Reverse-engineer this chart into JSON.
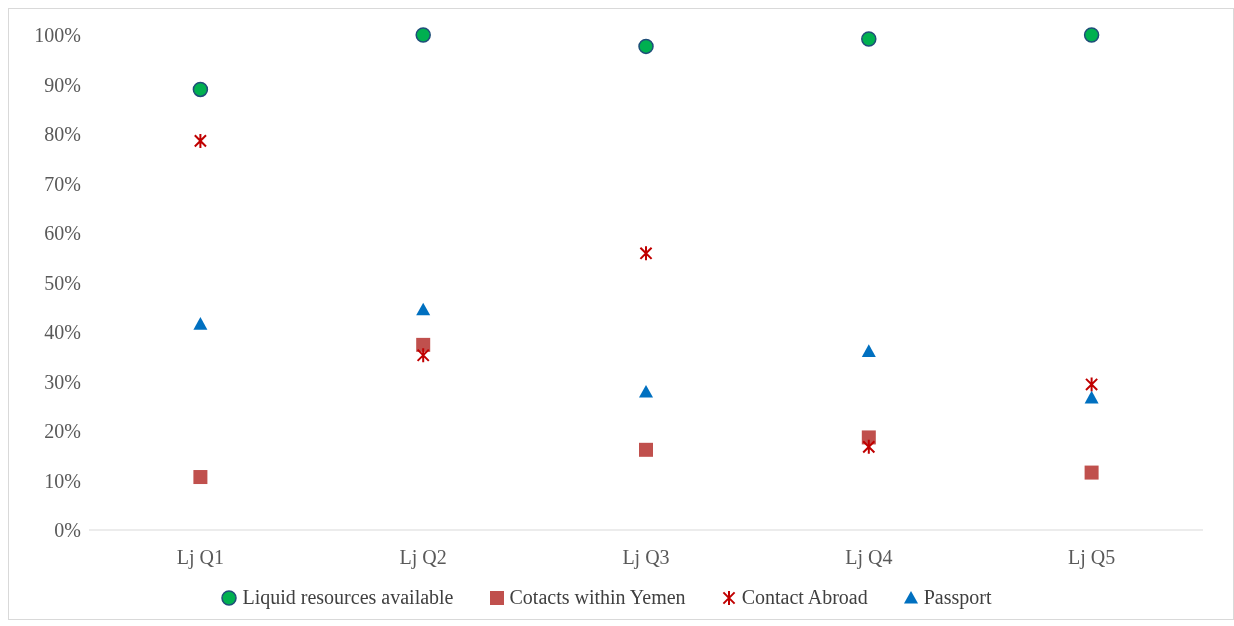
{
  "chart_data": {
    "type": "scatter",
    "categories": [
      "Lj Q1",
      "Lj Q2",
      "Lj Q3",
      "Lj Q4",
      "Lj Q5"
    ],
    "ylim": [
      0,
      100
    ],
    "yticks": [
      {
        "value": 0,
        "label": "0%"
      },
      {
        "value": 10,
        "label": "10%"
      },
      {
        "value": 20,
        "label": "20%"
      },
      {
        "value": 30,
        "label": "30%"
      },
      {
        "value": 40,
        "label": "40%"
      },
      {
        "value": 50,
        "label": "50%"
      },
      {
        "value": 60,
        "label": "60%"
      },
      {
        "value": 70,
        "label": "70%"
      },
      {
        "value": 80,
        "label": "80%"
      },
      {
        "value": 90,
        "label": "90%"
      },
      {
        "value": 100,
        "label": "100%"
      }
    ],
    "grid": false,
    "legend": "bottom",
    "series": [
      {
        "name": "Liquid resources available",
        "color": "#00b050",
        "marker": "circle",
        "values": [
          89,
          100,
          97.7,
          99.2,
          100
        ]
      },
      {
        "name": "Cotacts within Yemen",
        "color": "#c0504d",
        "marker": "square",
        "values": [
          10.7,
          37.4,
          16.2,
          18.7,
          11.6
        ]
      },
      {
        "name": "Contact Abroad",
        "color": "#c00000",
        "marker": "cross",
        "values": [
          78.6,
          35.3,
          55.9,
          16.8,
          29.4
        ]
      },
      {
        "name": "Passport",
        "color": "#0070c0",
        "marker": "triangle",
        "values": [
          41.6,
          44.5,
          27.9,
          36.1,
          26.7
        ]
      }
    ]
  }
}
